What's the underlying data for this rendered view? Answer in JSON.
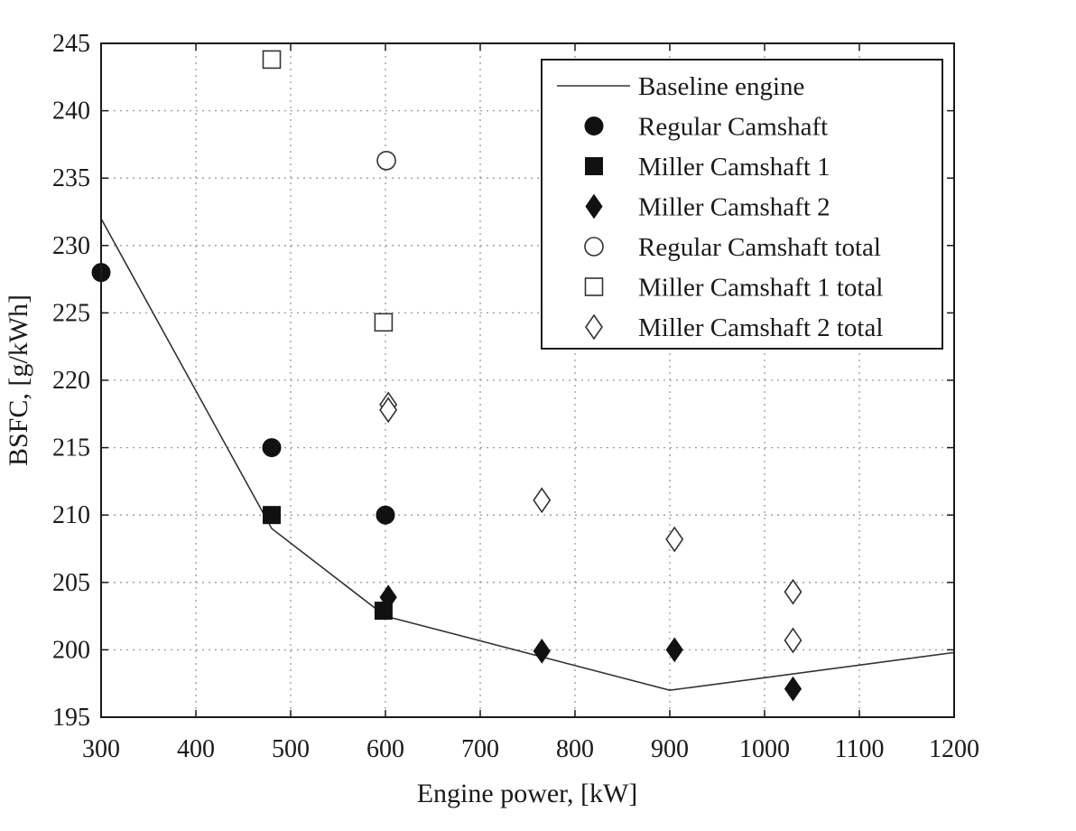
{
  "chart_data": {
    "type": "scatter",
    "title": "",
    "xlabel": "Engine power, [kW]",
    "ylabel": "BSFC, [g/kWh]",
    "xlim": [
      300,
      1200
    ],
    "ylim": [
      195,
      245
    ],
    "xticks": [
      300,
      400,
      500,
      600,
      700,
      800,
      900,
      1000,
      1100,
      1200
    ],
    "yticks": [
      195,
      200,
      205,
      210,
      215,
      220,
      225,
      230,
      235,
      240,
      245
    ],
    "grid": true,
    "legend_position": "top-right",
    "series": [
      {
        "name": "Baseline engine",
        "kind": "line",
        "color": "#333333",
        "x": [
          300,
          480,
          600,
          900,
          1200
        ],
        "y": [
          232,
          209,
          202.5,
          197,
          199.8
        ]
      },
      {
        "name": "Regular Camshaft",
        "kind": "marker",
        "marker": "circle",
        "filled": true,
        "x": [
          300,
          480,
          600
        ],
        "y": [
          228,
          215,
          210
        ]
      },
      {
        "name": "Miller Camshaft 1",
        "kind": "marker",
        "marker": "square",
        "filled": true,
        "x": [
          480,
          598
        ],
        "y": [
          210,
          202.9
        ]
      },
      {
        "name": "Miller Camshaft 2",
        "kind": "marker",
        "marker": "diamond",
        "filled": true,
        "x": [
          603,
          765,
          905,
          1030
        ],
        "y": [
          203.9,
          199.9,
          200,
          197.1
        ]
      },
      {
        "name": "Regular Camshaft total",
        "kind": "marker",
        "marker": "circle",
        "filled": false,
        "x": [
          601
        ],
        "y": [
          236.3
        ]
      },
      {
        "name": "Miller Camshaft 1 total",
        "kind": "marker",
        "marker": "square",
        "filled": false,
        "x": [
          480,
          598
        ],
        "y": [
          243.8,
          224.3
        ]
      },
      {
        "name": "Miller Camshaft 2 total",
        "kind": "marker",
        "marker": "diamond",
        "filled": false,
        "x": [
          603,
          603,
          765,
          905,
          1030,
          1030
        ],
        "y": [
          218.2,
          217.8,
          211.1,
          208.2,
          204.3,
          200.7
        ]
      }
    ]
  }
}
